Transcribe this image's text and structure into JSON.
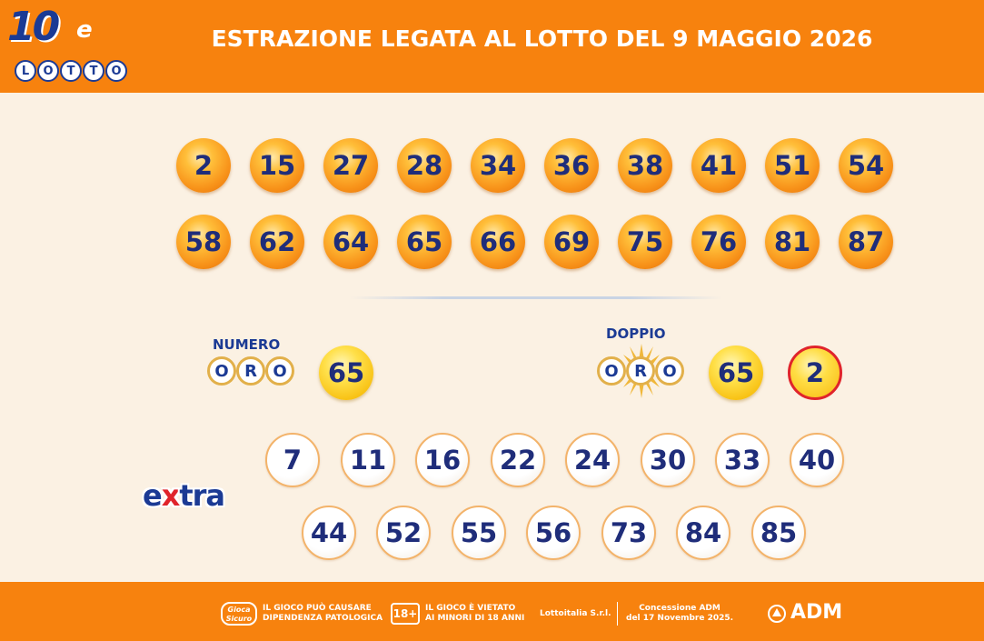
{
  "header": {
    "logo_number": "10",
    "logo_e": "e",
    "logo_letters": [
      "L",
      "O",
      "T",
      "T",
      "O"
    ],
    "title": "ESTRAZIONE LEGATA AL LOTTO DEL 9 MAGGIO 2026",
    "background_color": "#f7820e"
  },
  "main_numbers": [
    "2",
    "15",
    "27",
    "28",
    "34",
    "36",
    "38",
    "41",
    "51",
    "54",
    "58",
    "62",
    "64",
    "65",
    "66",
    "69",
    "75",
    "76",
    "81",
    "87"
  ],
  "numero_oro": {
    "label": "NUMERO",
    "letters": [
      "O",
      "R",
      "O"
    ],
    "number": "65"
  },
  "doppio_oro": {
    "label": "DOPPIO",
    "letters": [
      "O",
      "R",
      "O"
    ],
    "numbers": [
      "65",
      "2"
    ]
  },
  "extra": {
    "logo_e": "e",
    "logo_x": "x",
    "logo_tra": "tra",
    "numbers": [
      "7",
      "11",
      "16",
      "22",
      "24",
      "30",
      "33",
      "40",
      "44",
      "52",
      "55",
      "56",
      "73",
      "84",
      "85"
    ]
  },
  "footer": {
    "gioco_logo_line1": "Gioca",
    "gioco_logo_line2": "Sicuro",
    "warning_line1": "IL GIOCO PUÒ CAUSARE",
    "warning_line2": "DIPENDENZA PATOLOGICA",
    "age_badge": "18+",
    "minors_line1": "IL GIOCO È VIETATO",
    "minors_line2": "AI MINORI DI 18 ANNI",
    "company": "Lottoitalia S.r.l.",
    "concession_line1": "Concessione ADM",
    "concession_line2": "del 17 Novembre 2025.",
    "adm": "ADM"
  },
  "colors": {
    "brand_orange": "#f7820e",
    "brand_blue": "#1b3a94",
    "background": "#fbf1e3",
    "doppio_ring": "#e0242b"
  }
}
